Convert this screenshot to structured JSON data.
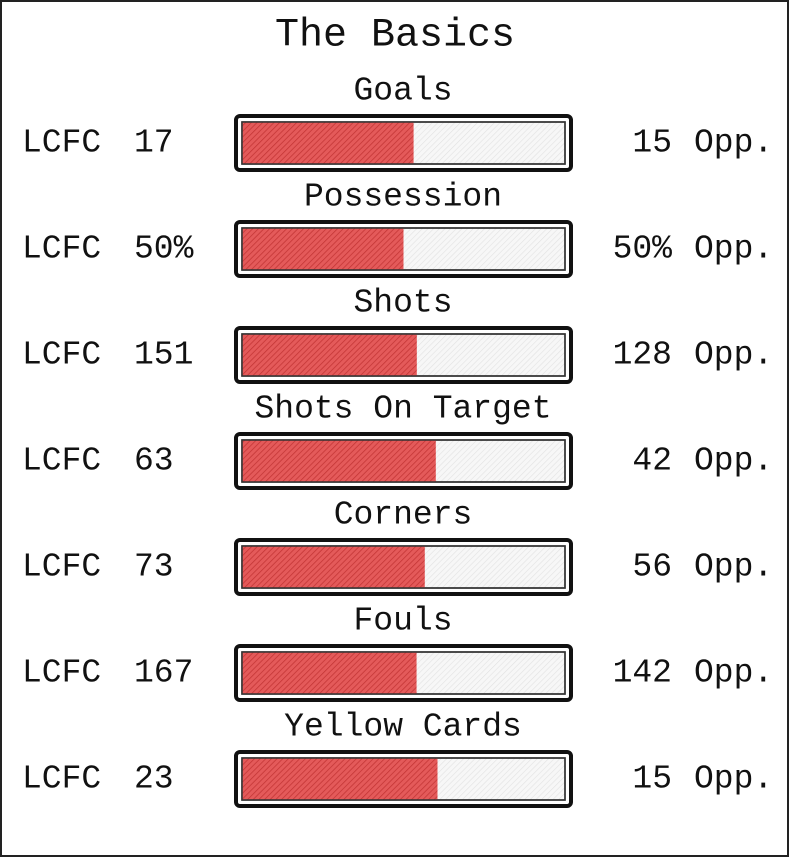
{
  "title": "The Basics",
  "team": "LCFC",
  "opponent": "Opp.",
  "stats": [
    {
      "label": "Goals",
      "home": 17,
      "away": 15
    },
    {
      "label": "Possession",
      "home": 50,
      "away": 50,
      "home_label": "50%",
      "away_label": "50%"
    },
    {
      "label": "Shots",
      "home": 151,
      "away": 128
    },
    {
      "label": "Shots On Target",
      "home": 63,
      "away": 42
    },
    {
      "label": "Corners",
      "home": 73,
      "away": 56
    },
    {
      "label": "Fouls",
      "home": 167,
      "away": 142
    },
    {
      "label": "Yellow Cards",
      "home": 23,
      "away": 15
    }
  ]
}
